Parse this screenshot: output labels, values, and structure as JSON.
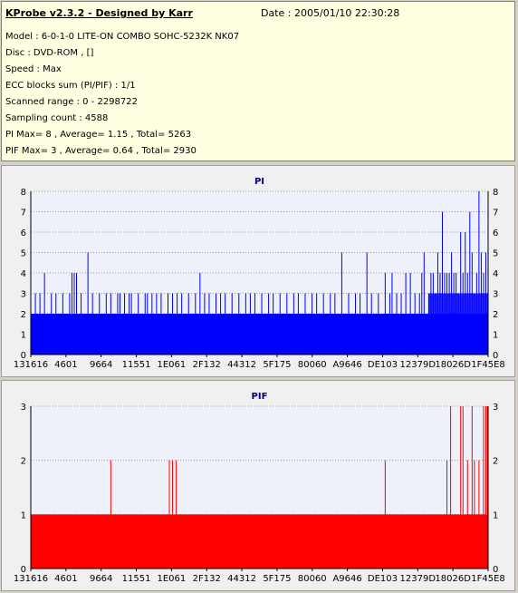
{
  "info": {
    "title": "KProbe v2.3.2 - Designed by Karr",
    "date": "Date : 2005/01/10 22:30:28",
    "lines": [
      "Model : 6-0-1-0 LITE-ON COMBO SOHC-5232K NK07",
      "Disc : DVD-ROM ,  []",
      "Speed : Max",
      "ECC blocks sum (PI/PIF) : 1/1",
      "Scanned range : 0 - 2298722",
      "Sampling count : 4588",
      "PI Max= 8 , Average= 1.15 , Total= 5263",
      "PIF Max= 3 , Average= 0.64 , Total= 2930"
    ]
  },
  "chart_data": [
    {
      "type": "bar",
      "title": "PI",
      "color": "#0000ff",
      "ylim": [
        0,
        8
      ],
      "yticks": [
        0,
        1,
        2,
        3,
        4,
        5,
        6,
        7,
        8
      ],
      "xticks": [
        "131616",
        "4601",
        "9664",
        "11551",
        "1E061",
        "2F132",
        "44312",
        "5F175",
        "80060",
        "A9646",
        "DE103",
        "12379D",
        "18026D",
        "1F45E8"
      ],
      "baseline": 2,
      "spikes": [
        [
          0.0,
          3
        ],
        [
          0.01,
          3
        ],
        [
          0.02,
          3
        ],
        [
          0.03,
          4
        ],
        [
          0.045,
          3
        ],
        [
          0.055,
          3
        ],
        [
          0.07,
          3
        ],
        [
          0.085,
          3
        ],
        [
          0.09,
          4
        ],
        [
          0.095,
          4
        ],
        [
          0.1,
          4
        ],
        [
          0.11,
          3
        ],
        [
          0.125,
          5
        ],
        [
          0.135,
          3
        ],
        [
          0.15,
          3
        ],
        [
          0.165,
          3
        ],
        [
          0.175,
          3
        ],
        [
          0.19,
          3
        ],
        [
          0.195,
          3
        ],
        [
          0.205,
          3
        ],
        [
          0.215,
          3
        ],
        [
          0.22,
          3
        ],
        [
          0.235,
          3
        ],
        [
          0.25,
          3
        ],
        [
          0.255,
          3
        ],
        [
          0.265,
          3
        ],
        [
          0.275,
          3
        ],
        [
          0.285,
          3
        ],
        [
          0.3,
          3
        ],
        [
          0.31,
          3
        ],
        [
          0.32,
          3
        ],
        [
          0.33,
          3
        ],
        [
          0.345,
          3
        ],
        [
          0.36,
          3
        ],
        [
          0.37,
          4
        ],
        [
          0.38,
          3
        ],
        [
          0.39,
          3
        ],
        [
          0.405,
          3
        ],
        [
          0.415,
          3
        ],
        [
          0.425,
          3
        ],
        [
          0.44,
          3
        ],
        [
          0.455,
          3
        ],
        [
          0.47,
          3
        ],
        [
          0.48,
          3
        ],
        [
          0.49,
          3
        ],
        [
          0.505,
          3
        ],
        [
          0.52,
          3
        ],
        [
          0.53,
          3
        ],
        [
          0.545,
          3
        ],
        [
          0.56,
          3
        ],
        [
          0.575,
          3
        ],
        [
          0.585,
          3
        ],
        [
          0.6,
          3
        ],
        [
          0.615,
          3
        ],
        [
          0.625,
          3
        ],
        [
          0.64,
          3
        ],
        [
          0.655,
          3
        ],
        [
          0.665,
          3
        ],
        [
          0.68,
          5
        ],
        [
          0.695,
          3
        ],
        [
          0.71,
          3
        ],
        [
          0.72,
          3
        ],
        [
          0.735,
          5
        ],
        [
          0.745,
          3
        ],
        [
          0.76,
          3
        ],
        [
          0.775,
          4
        ],
        [
          0.785,
          3
        ],
        [
          0.79,
          4
        ],
        [
          0.8,
          3
        ],
        [
          0.81,
          3
        ],
        [
          0.82,
          4
        ],
        [
          0.83,
          4
        ],
        [
          0.84,
          3
        ],
        [
          0.85,
          3
        ],
        [
          0.855,
          4
        ],
        [
          0.86,
          5
        ],
        [
          0.87,
          3
        ],
        [
          0.875,
          4
        ],
        [
          0.88,
          4
        ],
        [
          0.885,
          3
        ],
        [
          0.89,
          5
        ],
        [
          0.895,
          4
        ],
        [
          0.9,
          7
        ],
        [
          0.905,
          4
        ],
        [
          0.91,
          4
        ],
        [
          0.915,
          4
        ],
        [
          0.92,
          5
        ],
        [
          0.925,
          4
        ],
        [
          0.93,
          4
        ],
        [
          0.935,
          3
        ],
        [
          0.94,
          6
        ],
        [
          0.945,
          4
        ],
        [
          0.95,
          6
        ],
        [
          0.955,
          4
        ],
        [
          0.96,
          7
        ],
        [
          0.965,
          5
        ],
        [
          0.97,
          3
        ],
        [
          0.975,
          4
        ],
        [
          0.98,
          8
        ],
        [
          0.985,
          5
        ],
        [
          0.99,
          4
        ],
        [
          0.995,
          5
        ]
      ],
      "dense_region": [
        0.87,
        1.0,
        3
      ]
    },
    {
      "type": "bar",
      "title": "PIF",
      "color": "#ff0000",
      "ylim": [
        0,
        3
      ],
      "yticks": [
        0,
        1,
        2,
        3
      ],
      "xticks": [
        "131616",
        "4601",
        "9664",
        "11551",
        "1E061",
        "2F132",
        "44312",
        "5F175",
        "80060",
        "A9646",
        "DE103",
        "12379D",
        "18026D",
        "1F45E8"
      ],
      "baseline": 1,
      "spikes": [
        [
          0.175,
          2
        ],
        [
          0.303,
          2
        ],
        [
          0.31,
          2
        ],
        [
          0.318,
          2
        ],
        [
          0.775,
          2
        ],
        [
          0.91,
          2
        ],
        [
          0.918,
          3
        ],
        [
          0.94,
          3
        ],
        [
          0.945,
          3
        ],
        [
          0.955,
          2
        ],
        [
          0.965,
          3
        ],
        [
          0.97,
          2
        ],
        [
          0.98,
          2
        ],
        [
          0.99,
          3
        ],
        [
          0.995,
          3
        ],
        [
          0.998,
          3
        ]
      ]
    }
  ]
}
